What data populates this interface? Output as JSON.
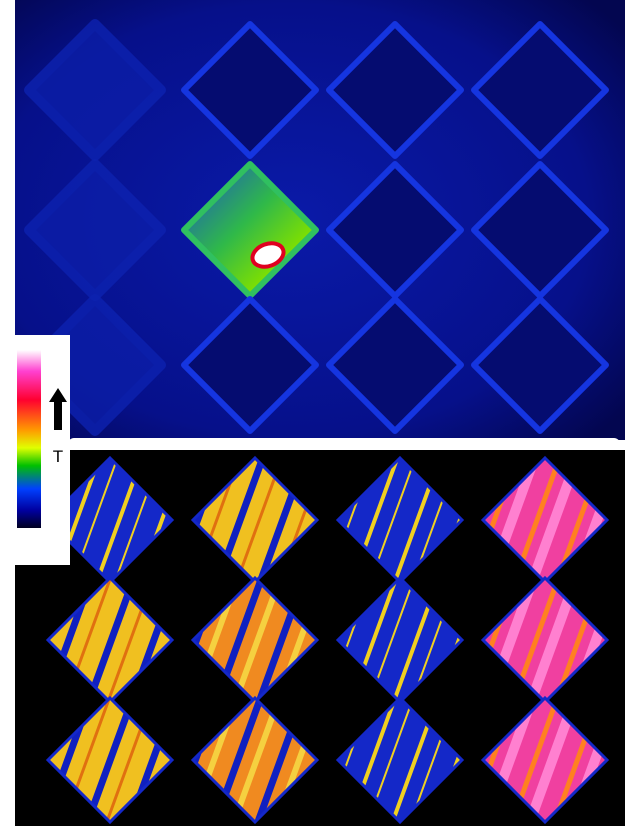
{
  "colorbar": {
    "label": "T"
  }
}
